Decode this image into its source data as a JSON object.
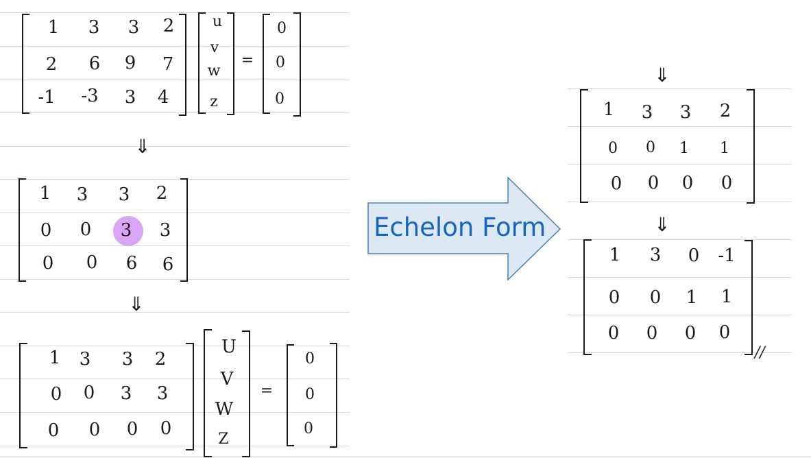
{
  "system1": {
    "matrix": [
      [
        "1",
        "3",
        "3",
        "2"
      ],
      [
        "2",
        "6",
        "9",
        "7"
      ],
      [
        "-1",
        "-3",
        "3",
        "4"
      ]
    ],
    "vars": [
      "u",
      "v",
      "w",
      "z"
    ],
    "equals": "=",
    "rhs": [
      "0",
      "0",
      "0"
    ]
  },
  "down_arrow": "⇓",
  "step2": {
    "matrix": [
      [
        "1",
        "3",
        "3",
        "2"
      ],
      [
        "0",
        "0",
        "3",
        "3"
      ],
      [
        "0",
        "0",
        "6",
        "6"
      ]
    ],
    "pivot": "3"
  },
  "system3": {
    "matrix": [
      [
        "1",
        "3",
        "3",
        "2"
      ],
      [
        "0",
        "0",
        "3",
        "3"
      ],
      [
        "0",
        "0",
        "0",
        "0"
      ]
    ],
    "vars": [
      "U",
      "V",
      "W",
      "Z"
    ],
    "equals": "=",
    "rhs": [
      "0",
      "0",
      "0"
    ]
  },
  "banner": {
    "label": "Echelon Form",
    "fill": "#dce9f5",
    "stroke": "#4a7ec2",
    "text_color": "#1565c0"
  },
  "right_upper": {
    "matrix": [
      [
        "1",
        "3",
        "3",
        "2"
      ],
      [
        "0",
        "0",
        "1",
        "1"
      ],
      [
        "0",
        "0",
        "0",
        "0"
      ]
    ]
  },
  "right_lower": {
    "matrix": [
      [
        "1",
        "3",
        "0",
        "-1"
      ],
      [
        "0",
        "0",
        "1",
        "1"
      ],
      [
        "0",
        "0",
        "0",
        "0"
      ]
    ],
    "end_mark": "//"
  },
  "highlight_color": "#d9a6f5"
}
